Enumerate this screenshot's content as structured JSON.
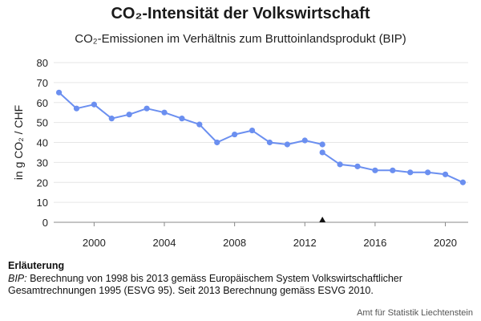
{
  "title": "CO₂-Intensität der Volkswirtschaft",
  "subtitle": "CO₂-Emissionen im Verhältnis zum Bruttoinlandsprodukt (BIP)",
  "note": {
    "heading": "Erläuterung",
    "label": "BIP:",
    "text": " Berechnung von 1998 bis 2013 gemäss Europäischem System Volkswirtschaftlicher Gesamtrechnungen 1995 (ESVG 95). Seit 2013 Berechnung gemäss ESVG 2010."
  },
  "source": "Amt für Statistik Liechtenstein",
  "colors": {
    "series": "#6b8ff0",
    "grid": "#e6e6e6",
    "axis": "#888888",
    "marker": "#111111"
  },
  "chart_data": {
    "type": "line",
    "title": "CO₂-Intensität der Volkswirtschaft",
    "subtitle": "CO₂-Emissionen im Verhältnis zum Bruttoinlandsprodukt (BIP)",
    "ylabel": "in g CO₂ / CHF",
    "xlabel": "",
    "ylim": [
      0,
      80
    ],
    "xlim": [
      1997.7,
      2021.3
    ],
    "yticks": [
      0,
      10,
      20,
      30,
      40,
      50,
      60,
      70,
      80
    ],
    "xticks": [
      2000,
      2004,
      2008,
      2012,
      2016,
      2020
    ],
    "grid": true,
    "break_marker": {
      "x": 2013,
      "symbol": "triangle"
    },
    "series": [
      {
        "x": [
          1998,
          1999,
          2000,
          2001,
          2002,
          2003,
          2004,
          2005,
          2006,
          2007,
          2008,
          2009,
          2010,
          2011,
          2012,
          2013
        ],
        "y": [
          65,
          57,
          59,
          52,
          54,
          57,
          55,
          52,
          49,
          40,
          44,
          46,
          40,
          39,
          41,
          39
        ]
      },
      {
        "x": [
          2013,
          2014,
          2015,
          2016,
          2017,
          2018,
          2019,
          2020,
          2021
        ],
        "y": [
          35,
          29,
          28,
          26,
          26,
          25,
          25,
          24,
          20
        ]
      }
    ]
  }
}
